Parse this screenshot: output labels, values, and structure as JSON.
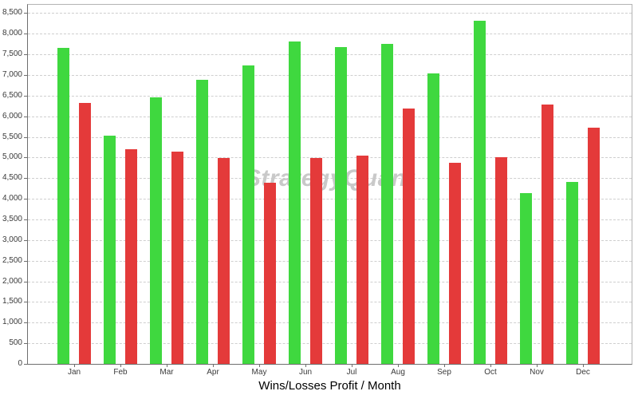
{
  "chart_data": {
    "type": "bar",
    "title": "",
    "xlabel": "Wins/Losses Profit / Month",
    "ylabel": "",
    "watermark": "StrategyQuant",
    "categories": [
      "Jan",
      "Feb",
      "Mar",
      "Apr",
      "May",
      "Jun",
      "Jul",
      "Aug",
      "Sep",
      "Oct",
      "Nov",
      "Dec"
    ],
    "series": [
      {
        "name": "Wins",
        "color": "#3fd83f",
        "values": [
          7660,
          5530,
          6450,
          6880,
          7240,
          7820,
          7670,
          7750,
          7040,
          8310,
          4130,
          4410
        ]
      },
      {
        "name": "Losses",
        "color": "#e43a3a",
        "values": [
          6330,
          5200,
          5140,
          4990,
          4390,
          4990,
          5040,
          6190,
          4870,
          5000,
          6280,
          5720
        ]
      }
    ],
    "ylim": [
      0,
      8700
    ],
    "ytick_step": 500,
    "ytick_labels": [
      "0",
      "500",
      "1,000",
      "1,500",
      "2,000",
      "2,500",
      "3,000",
      "3,500",
      "4,000",
      "4,500",
      "5,000",
      "5,500",
      "6,000",
      "6,500",
      "7,000",
      "7,500",
      "8,000",
      "8,500"
    ],
    "grid": "horizontal-dashed",
    "legend": "none",
    "colors": {
      "grid": "#cfcfcf",
      "axis": "#6e6e6e",
      "outer_border": "#b3b3b3",
      "tick_text": "#3a3a3a",
      "watermark_text": "#c9c9c9",
      "background": "#ffffff"
    }
  }
}
